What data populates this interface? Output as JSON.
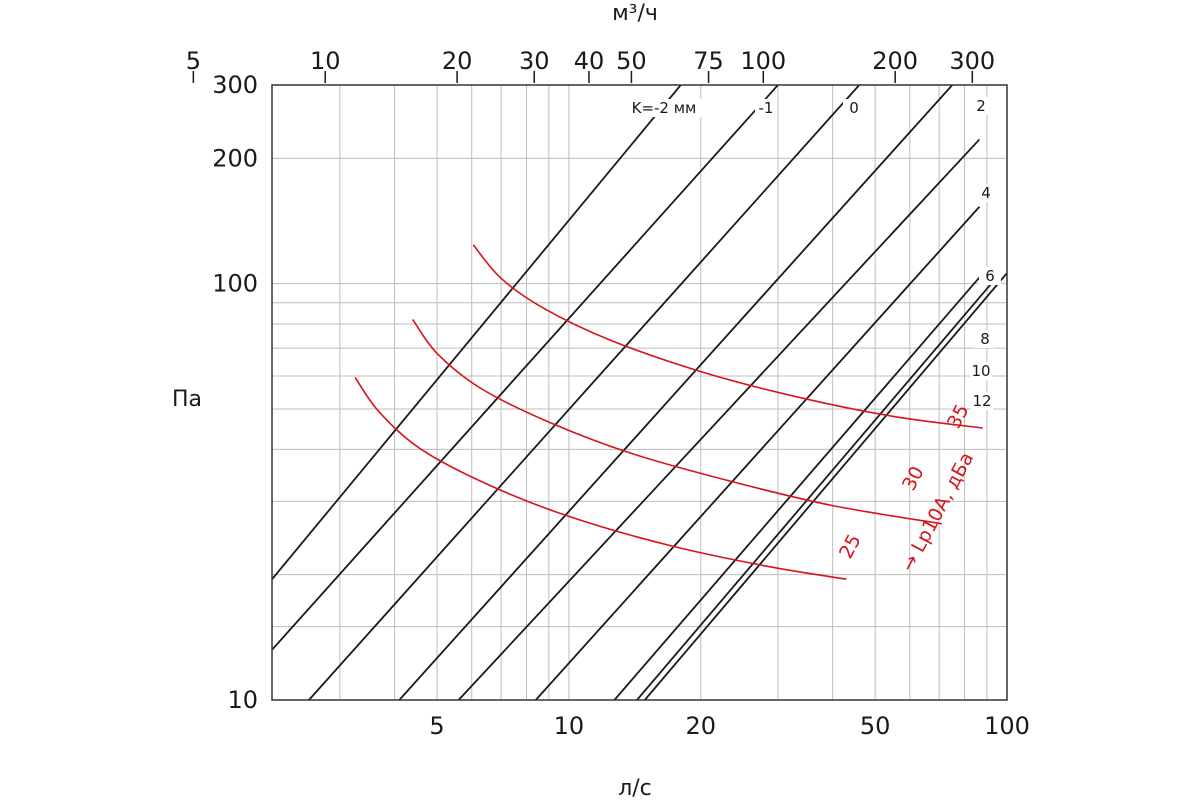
{
  "chart_data": {
    "type": "line",
    "title": "",
    "xlabel": "л/с",
    "x2label": "м³/ч",
    "ylabel": "Па",
    "xscale": "log",
    "yscale": "log",
    "xlim": [
      2.1,
      100
    ],
    "ylim": [
      10,
      300
    ],
    "grid": true,
    "x_ticks": [
      5,
      10,
      20,
      50,
      100
    ],
    "x_tick_labels": [
      "5",
      "10",
      "20",
      "50",
      "100"
    ],
    "x_minor_gridlines": [
      3,
      4,
      6,
      7,
      8,
      9,
      30,
      40,
      60,
      70,
      80,
      90
    ],
    "x2_ticks": [
      5,
      10,
      20,
      30,
      40,
      50,
      75,
      100,
      200,
      300
    ],
    "x2_tick_labels": [
      "5",
      "10",
      "20",
      "30",
      "40",
      "50",
      "75",
      "100",
      "200",
      "300"
    ],
    "y_ticks": [
      10,
      100,
      200,
      300
    ],
    "y_tick_labels": [
      "10",
      "100",
      "200",
      "300"
    ],
    "y_minor_gridlines": [
      15,
      20,
      30,
      40,
      50,
      60,
      70,
      80,
      90
    ],
    "series": [
      {
        "name": "K=-2 мм",
        "color": "#1a1a1a",
        "points": [
          [
            2.1,
            19.5
          ],
          [
            18,
            300
          ]
        ]
      },
      {
        "name": "-1",
        "color": "#1a1a1a",
        "points": [
          [
            2.1,
            13.2
          ],
          [
            30,
            300
          ]
        ]
      },
      {
        "name": "0",
        "color": "#1a1a1a",
        "points": [
          [
            2.55,
            10
          ],
          [
            46,
            300
          ]
        ]
      },
      {
        "name": "2",
        "color": "#1a1a1a",
        "points": [
          [
            4.1,
            10
          ],
          [
            75,
            300
          ]
        ]
      },
      {
        "name": "4",
        "color": "#1a1a1a",
        "points": [
          [
            5.6,
            10
          ],
          [
            86.5,
            222
          ]
        ]
      },
      {
        "name": "6",
        "color": "#1a1a1a",
        "points": [
          [
            8.4,
            10
          ],
          [
            86.5,
            153
          ]
        ]
      },
      {
        "name": "8",
        "color": "#1a1a1a",
        "points": [
          [
            12.7,
            10
          ],
          [
            86.5,
            103.5
          ]
        ]
      },
      {
        "name": "10",
        "color": "#1a1a1a",
        "points": [
          [
            14.3,
            10
          ],
          [
            95,
            104
          ]
        ]
      },
      {
        "name": "12",
        "color": "#1a1a1a",
        "points": [
          [
            14.9,
            10
          ],
          [
            100,
            106
          ]
        ]
      }
    ],
    "noise_curves": [
      {
        "name": "25",
        "color": "#d7141a",
        "points": [
          [
            3.25,
            59.5
          ],
          [
            3.7,
            49
          ],
          [
            4.6,
            40
          ],
          [
            6.5,
            33
          ],
          [
            10,
            27.6
          ],
          [
            17,
            23.5
          ],
          [
            28,
            21
          ],
          [
            43,
            19.5
          ]
        ]
      },
      {
        "name": "30",
        "color": "#d7141a",
        "points": [
          [
            4.4,
            82
          ],
          [
            5,
            68
          ],
          [
            6.3,
            56
          ],
          [
            9,
            46.5
          ],
          [
            14,
            39
          ],
          [
            24,
            33.3
          ],
          [
            40,
            29.3
          ],
          [
            71,
            26.5
          ]
        ]
      },
      {
        "name": "35",
        "color": "#d7141a",
        "points": [
          [
            6.05,
            124
          ],
          [
            7,
            103
          ],
          [
            8.8,
            87
          ],
          [
            12.5,
            73
          ],
          [
            20,
            61.5
          ],
          [
            33,
            53.5
          ],
          [
            55,
            48
          ],
          [
            88,
            45
          ]
        ]
      }
    ],
    "annotations": {
      "k_prefix": "K=",
      "k_unit": "мм",
      "noise_axis_label": "→ Lp10A, дБа"
    }
  }
}
